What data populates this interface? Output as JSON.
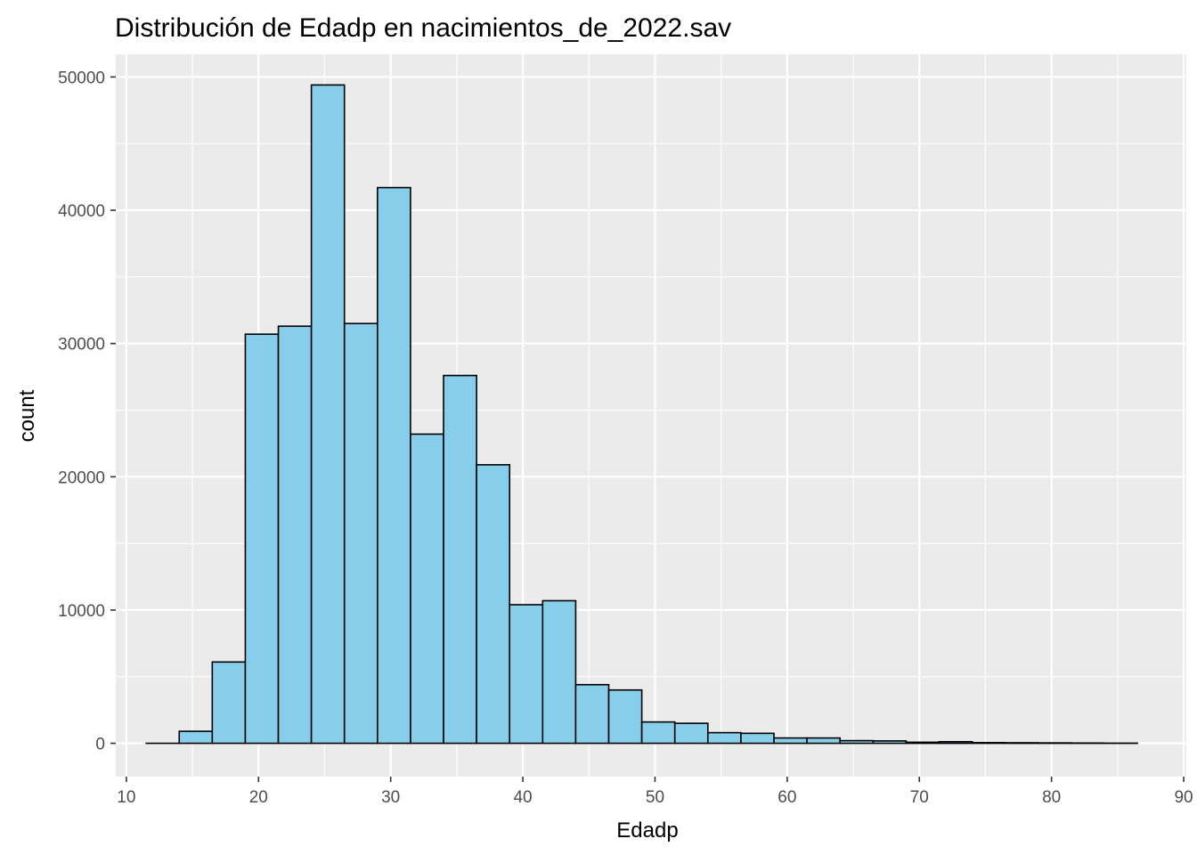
{
  "chart_data": {
    "type": "bar",
    "title": "Distribución de Edadp en nacimientos_de_2022.sav",
    "xlabel": "Edadp",
    "ylabel": "count",
    "xlim": [
      9.2,
      90.2
    ],
    "ylim": [
      -2500,
      51700
    ],
    "x_ticks": [
      10,
      20,
      30,
      40,
      50,
      60,
      70,
      80,
      90
    ],
    "y_ticks": [
      0,
      10000,
      20000,
      30000,
      40000,
      50000
    ],
    "bin_width": 2.5,
    "bins": [
      {
        "x0": 11.5,
        "x1": 14.0,
        "count": 0
      },
      {
        "x0": 14.0,
        "x1": 16.5,
        "count": 900
      },
      {
        "x0": 16.5,
        "x1": 19.0,
        "count": 6100
      },
      {
        "x0": 19.0,
        "x1": 21.5,
        "count": 30700
      },
      {
        "x0": 21.5,
        "x1": 24.0,
        "count": 31300
      },
      {
        "x0": 24.0,
        "x1": 26.5,
        "count": 49400
      },
      {
        "x0": 26.5,
        "x1": 29.0,
        "count": 31500
      },
      {
        "x0": 29.0,
        "x1": 31.5,
        "count": 41700
      },
      {
        "x0": 31.5,
        "x1": 34.0,
        "count": 23200
      },
      {
        "x0": 34.0,
        "x1": 36.5,
        "count": 27600
      },
      {
        "x0": 36.5,
        "x1": 39.0,
        "count": 20900
      },
      {
        "x0": 39.0,
        "x1": 41.5,
        "count": 10400
      },
      {
        "x0": 41.5,
        "x1": 44.0,
        "count": 10700
      },
      {
        "x0": 44.0,
        "x1": 46.5,
        "count": 4400
      },
      {
        "x0": 46.5,
        "x1": 49.0,
        "count": 4000
      },
      {
        "x0": 49.0,
        "x1": 51.5,
        "count": 1600
      },
      {
        "x0": 51.5,
        "x1": 54.0,
        "count": 1500
      },
      {
        "x0": 54.0,
        "x1": 56.5,
        "count": 800
      },
      {
        "x0": 56.5,
        "x1": 59.0,
        "count": 750
      },
      {
        "x0": 59.0,
        "x1": 61.5,
        "count": 400
      },
      {
        "x0": 61.5,
        "x1": 64.0,
        "count": 400
      },
      {
        "x0": 64.0,
        "x1": 66.5,
        "count": 200
      },
      {
        "x0": 66.5,
        "x1": 69.0,
        "count": 180
      },
      {
        "x0": 69.0,
        "x1": 71.5,
        "count": 80
      },
      {
        "x0": 71.5,
        "x1": 74.0,
        "count": 120
      },
      {
        "x0": 74.0,
        "x1": 76.5,
        "count": 50
      },
      {
        "x0": 76.5,
        "x1": 79.0,
        "count": 40
      },
      {
        "x0": 79.0,
        "x1": 81.5,
        "count": 30
      },
      {
        "x0": 81.5,
        "x1": 84.0,
        "count": 20
      },
      {
        "x0": 84.0,
        "x1": 86.5,
        "count": 10
      }
    ],
    "grid": true,
    "colors": {
      "bar_fill": "#87CEEB",
      "bar_stroke": "#000000",
      "panel_background": "#EBEBEB",
      "grid_major": "#FFFFFF",
      "tick_label": "#4D4D4D"
    }
  }
}
